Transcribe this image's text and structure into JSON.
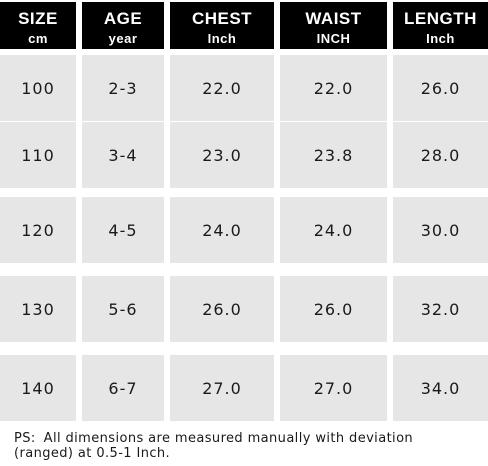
{
  "table": {
    "headers": [
      {
        "title": "SIZE",
        "unit": "cm"
      },
      {
        "title": "AGE",
        "unit": "year"
      },
      {
        "title": "CHEST",
        "unit": "Inch"
      },
      {
        "title": "WAIST",
        "unit": "INCH"
      },
      {
        "title": "LENGTH",
        "unit": "Inch"
      }
    ],
    "rows": [
      [
        "100",
        "2-3",
        "22.0",
        "22.0",
        "26.0"
      ],
      [
        "110",
        "3-4",
        "23.0",
        "23.8",
        "28.0"
      ],
      [
        "120",
        "4-5",
        "24.0",
        "24.0",
        "30.0"
      ],
      [
        "130",
        "5-6",
        "26.0",
        "26.0",
        "32.0"
      ],
      [
        "140",
        "6-7",
        "27.0",
        "27.0",
        "34.0"
      ]
    ]
  },
  "note": {
    "prefix": "PS:",
    "line1": "All dimensions are measured manually with deviation",
    "line2": "(ranged) at 0.5-1 Inch."
  },
  "colors": {
    "header_bg": "#000000",
    "header_text": "#ffffff",
    "cell_bg": "#e6e6e6",
    "cell_text": "#1a1a1a"
  }
}
